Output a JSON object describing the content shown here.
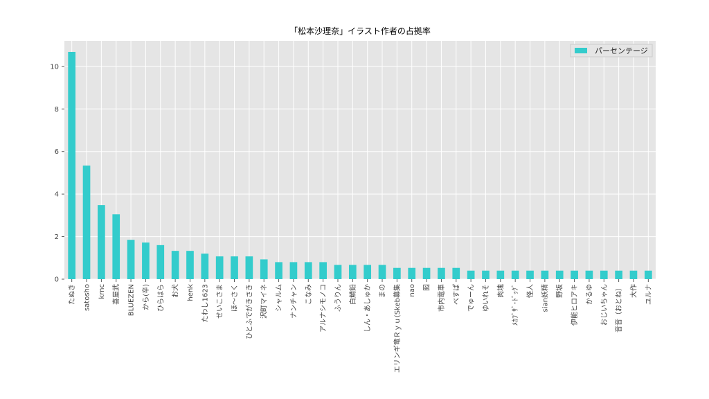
{
  "chart_data": {
    "type": "bar",
    "title": "「松本沙理奈」イラスト作者の占拠率",
    "xlabel": "",
    "ylabel": "",
    "ylim": [
      0,
      11.2
    ],
    "yticks": [
      0,
      2,
      4,
      6,
      8,
      10
    ],
    "grid": true,
    "legend_position": "top-right",
    "bar_color": "#33cccc",
    "background_color": "#e5e5e5",
    "categories": [
      "たぬき",
      "satosho",
      "krnc",
      "喜屋武",
      "BLUEZEN",
      "から(辛)",
      "ひらはら",
      "お犬",
      "henk",
      "たわし1623",
      "せいこさま",
      "ほ〜さく",
      "ひとふでがきさき",
      "沢町マイネ",
      "シャルム",
      "ナンチャン",
      "こなみ",
      "アルナシモノコ",
      "ふうりん",
      "白鯖鉛",
      "しん・あしゅか",
      "まの",
      "エリンギ竜Ｒｙｕ(Skeb募集",
      "nao",
      "囮",
      "市内電車",
      "べすぱ",
      "でゅーん",
      "ゆいれそ",
      "肉塊",
      "ﾒｶﾌﾞｻﾞ･ﾄﾞｯｸﾞ",
      "怪人",
      "sian妖精",
      "野坂",
      "伊能ヒロアキ",
      "かるゆ",
      "おじいちゃん",
      "音音（おとね）",
      "大作",
      "ユルナ"
    ],
    "series": [
      {
        "name": "パーセンテージ",
        "values": [
          10.68,
          5.34,
          3.48,
          3.05,
          1.85,
          1.72,
          1.6,
          1.33,
          1.33,
          1.2,
          1.07,
          1.07,
          1.07,
          0.93,
          0.8,
          0.8,
          0.8,
          0.8,
          0.67,
          0.67,
          0.67,
          0.67,
          0.53,
          0.53,
          0.53,
          0.53,
          0.53,
          0.4,
          0.4,
          0.4,
          0.4,
          0.4,
          0.4,
          0.4,
          0.4,
          0.4,
          0.4,
          0.4,
          0.4,
          0.4
        ]
      }
    ]
  }
}
